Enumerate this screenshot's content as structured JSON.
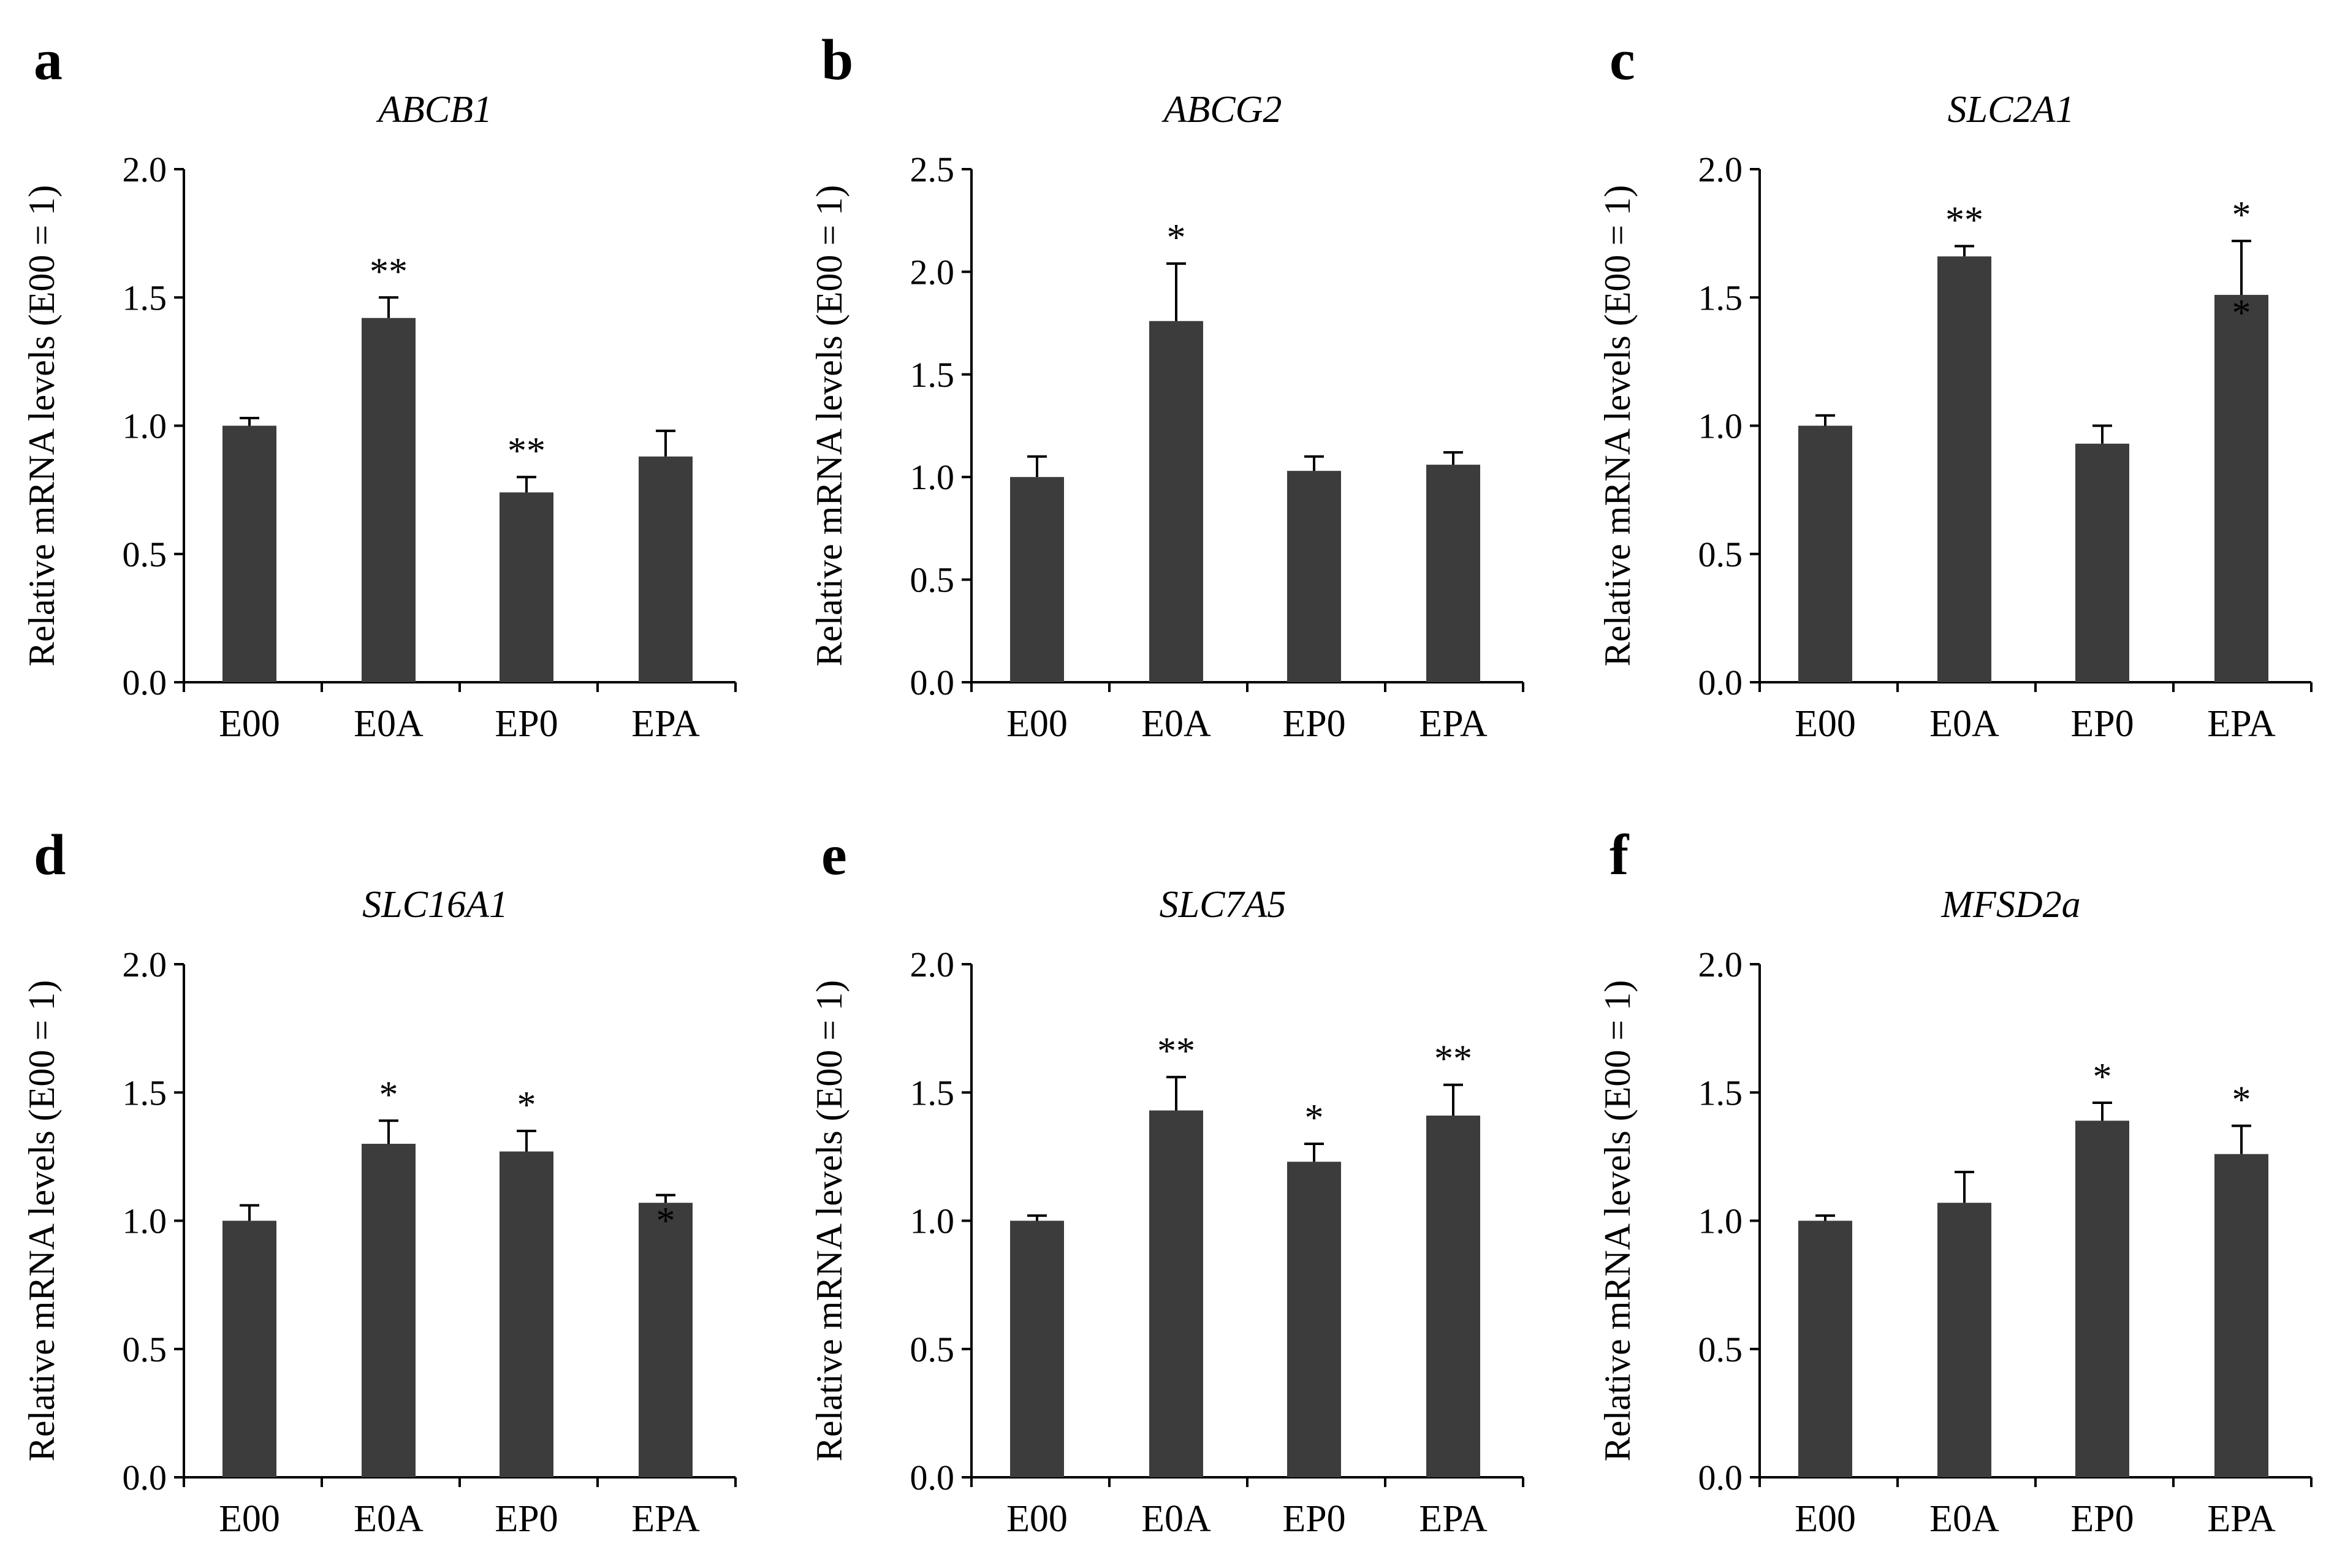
{
  "colors": {
    "bar": "#3c3c3c",
    "axis": "#000000",
    "background": "#ffffff"
  },
  "chart_data": [
    {
      "panel": "a",
      "type": "bar",
      "title": "ABCB1",
      "ylabel": "Relative mRNA levels (E00 = 1)",
      "xlabel": "",
      "ylim": [
        0,
        2.0
      ],
      "yticks": [
        "0.0",
        "0.5",
        "1.0",
        "1.5",
        "2.0"
      ],
      "categories": [
        "E00",
        "E0A",
        "EP0",
        "EPA"
      ],
      "values": [
        1.0,
        1.42,
        0.74,
        0.88
      ],
      "errors": [
        0.03,
        0.08,
        0.06,
        0.1
      ],
      "significance": [
        "",
        "**",
        "**",
        ""
      ]
    },
    {
      "panel": "b",
      "type": "bar",
      "title": "ABCG2",
      "ylabel": "Relative mRNA levels (E00 = 1)",
      "xlabel": "",
      "ylim": [
        0,
        2.5
      ],
      "yticks": [
        "0.0",
        "0.5",
        "1.0",
        "1.5",
        "2.0",
        "2.5"
      ],
      "categories": [
        "E00",
        "E0A",
        "EP0",
        "EPA"
      ],
      "values": [
        1.0,
        1.76,
        1.03,
        1.06
      ],
      "errors": [
        0.1,
        0.28,
        0.07,
        0.06
      ],
      "significance": [
        "",
        "*",
        "",
        ""
      ]
    },
    {
      "panel": "c",
      "type": "bar",
      "title": "SLC2A1",
      "ylabel": "Relative mRNA levels (E00 = 1)",
      "xlabel": "",
      "ylim": [
        0,
        2.0
      ],
      "yticks": [
        "0.0",
        "0.5",
        "1.0",
        "1.5",
        "2.0"
      ],
      "categories": [
        "E00",
        "E0A",
        "EP0",
        "EPA"
      ],
      "values": [
        1.0,
        1.66,
        0.93,
        1.51
      ],
      "errors": [
        0.04,
        0.04,
        0.07,
        0.21
      ],
      "significance": [
        "",
        "**",
        "",
        "*"
      ],
      "inner_marks": [
        "",
        "",
        "",
        "*"
      ]
    },
    {
      "panel": "d",
      "type": "bar",
      "title": "SLC16A1",
      "ylabel": "Relative mRNA levels (E00 = 1)",
      "xlabel": "",
      "ylim": [
        0,
        2.0
      ],
      "yticks": [
        "0.0",
        "0.5",
        "1.0",
        "1.5",
        "2.0"
      ],
      "categories": [
        "E00",
        "E0A",
        "EP0",
        "EPA"
      ],
      "values": [
        1.0,
        1.3,
        1.27,
        1.07
      ],
      "errors": [
        0.06,
        0.09,
        0.08,
        0.03
      ],
      "significance": [
        "",
        "*",
        "*",
        ""
      ],
      "inner_marks": [
        "",
        "",
        "",
        "*"
      ]
    },
    {
      "panel": "e",
      "type": "bar",
      "title": "SLC7A5",
      "ylabel": "Relative mRNA levels (E00 = 1)",
      "xlabel": "",
      "ylim": [
        0,
        2.0
      ],
      "yticks": [
        "0.0",
        "0.5",
        "1.0",
        "1.5",
        "2.0"
      ],
      "categories": [
        "E00",
        "E0A",
        "EP0",
        "EPA"
      ],
      "values": [
        1.0,
        1.43,
        1.23,
        1.41
      ],
      "errors": [
        0.02,
        0.13,
        0.07,
        0.12
      ],
      "significance": [
        "",
        "**",
        "*",
        "**"
      ]
    },
    {
      "panel": "f",
      "type": "bar",
      "title": "MFSD2a",
      "ylabel": "Relative mRNA levels (E00 = 1)",
      "xlabel": "",
      "ylim": [
        0,
        2.0
      ],
      "yticks": [
        "0.0",
        "0.5",
        "1.0",
        "1.5",
        "2.0"
      ],
      "categories": [
        "E00",
        "E0A",
        "EP0",
        "EPA"
      ],
      "values": [
        1.0,
        1.07,
        1.39,
        1.26
      ],
      "errors": [
        0.02,
        0.12,
        0.07,
        0.11
      ],
      "significance": [
        "",
        "",
        "*",
        "*"
      ]
    }
  ]
}
